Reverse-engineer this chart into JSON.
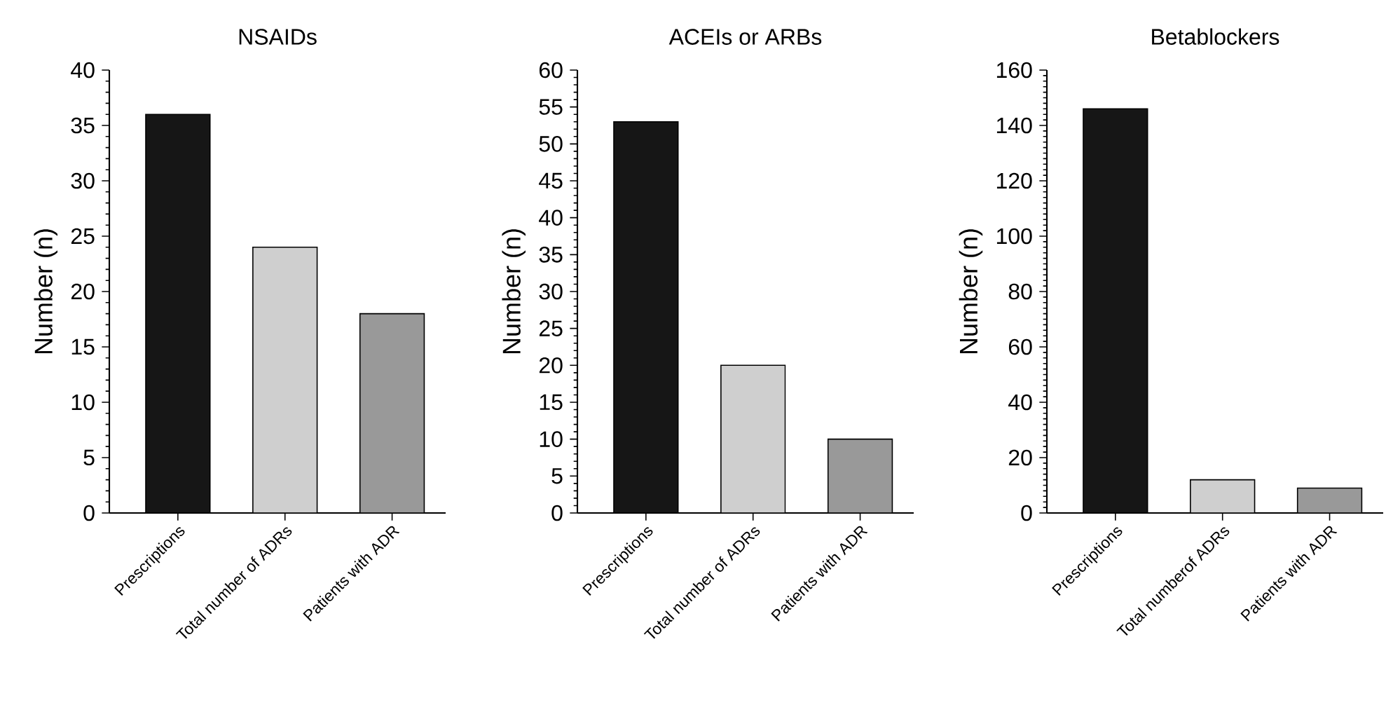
{
  "chart_data": [
    {
      "type": "bar",
      "title": "NSAIDs",
      "ylabel": "Number (n)",
      "categories": [
        "Prescriptions",
        "Total number of ADRs",
        "Patients with ADR"
      ],
      "values": [
        36,
        24,
        18
      ],
      "colors": [
        "#161616",
        "#cfcfcf",
        "#999999"
      ],
      "ylim": [
        0,
        40
      ],
      "yticks": [
        0,
        5,
        10,
        15,
        20,
        25,
        30,
        35,
        40
      ]
    },
    {
      "type": "bar",
      "title": "ACEIs or ARBs",
      "ylabel": "Number (n)",
      "categories": [
        "Prescriptions",
        "Total number of ADRs",
        "Patients with ADR"
      ],
      "values": [
        53,
        20,
        10
      ],
      "colors": [
        "#161616",
        "#cfcfcf",
        "#999999"
      ],
      "ylim": [
        0,
        60
      ],
      "yticks": [
        0,
        5,
        10,
        15,
        20,
        25,
        30,
        35,
        40,
        45,
        50,
        55,
        60
      ]
    },
    {
      "type": "bar",
      "title": "Betablockers",
      "ylabel": "Number (n)",
      "categories": [
        "Prescriptions",
        "Total numberof ADRs",
        "Patients with ADR"
      ],
      "values": [
        146,
        12,
        9
      ],
      "colors": [
        "#161616",
        "#cfcfcf",
        "#999999"
      ],
      "ylim": [
        0,
        160
      ],
      "yticks": [
        0,
        20,
        40,
        60,
        80,
        100,
        120,
        140,
        160
      ]
    }
  ]
}
